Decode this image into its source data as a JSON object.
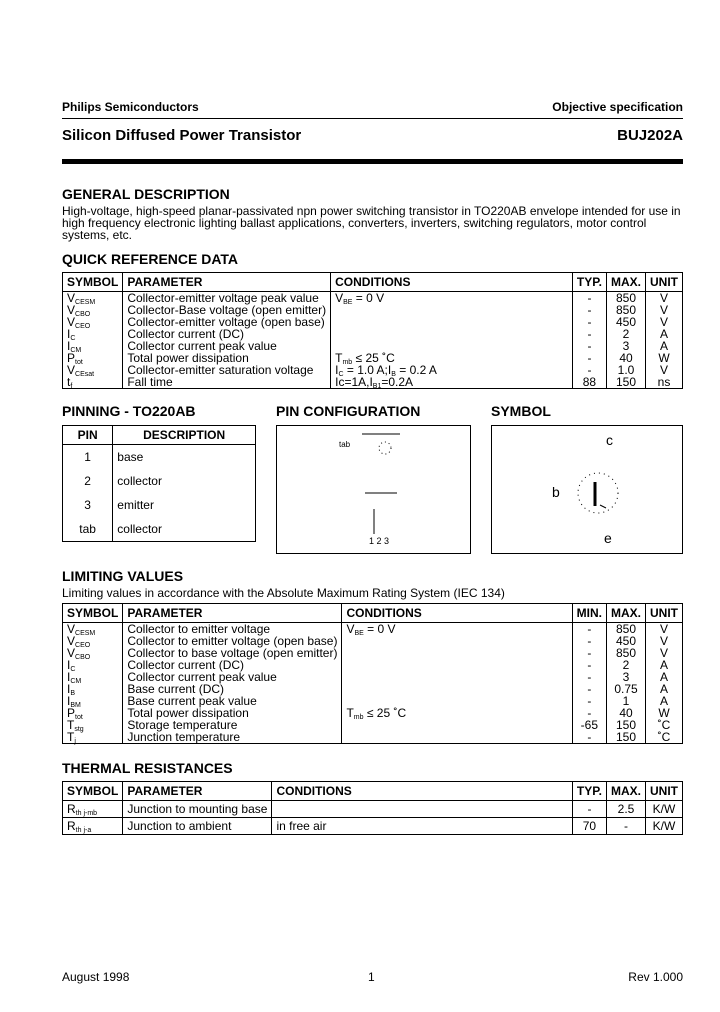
{
  "header": {
    "company": "Philips Semiconductors",
    "doc_type": "Objective specification",
    "title": "Silicon Diffused Power Transistor",
    "part": "BUJ202A"
  },
  "general": {
    "heading": "GENERAL DESCRIPTION",
    "text": "High-voltage, high-speed planar-passivated npn power switching transistor in TO220AB envelope intended for use in high frequency electronic lighting ballast applications, converters, inverters, switching regulators, motor control systems, etc."
  },
  "quick": {
    "heading": "QUICK REFERENCE DATA",
    "columns": [
      "SYMBOL",
      "PARAMETER",
      "CONDITIONS",
      "TYP.",
      "MAX.",
      "UNIT"
    ],
    "rows": [
      {
        "sym": [
          {
            "t": "V"
          },
          {
            "t": "CESM",
            "sub": true
          }
        ],
        "param": "Collector-emitter voltage peak value",
        "cond": [
          {
            "t": "V"
          },
          {
            "t": "BE",
            "sub": true
          },
          {
            "t": " = 0 V"
          }
        ],
        "v1": "-",
        "max": "850",
        "unit": "V"
      },
      {
        "sym": [
          {
            "t": "V"
          },
          {
            "t": "CBO",
            "sub": true
          }
        ],
        "param": "Collector-Base voltage (open emitter)",
        "cond": [],
        "v1": "-",
        "max": "850",
        "unit": "V"
      },
      {
        "sym": [
          {
            "t": "V"
          },
          {
            "t": "CEO",
            "sub": true
          }
        ],
        "param": "Collector-emitter voltage (open base)",
        "cond": [],
        "v1": "-",
        "max": "450",
        "unit": "V"
      },
      {
        "sym": [
          {
            "t": "I"
          },
          {
            "t": "C",
            "sub": true
          }
        ],
        "param": "Collector current (DC)",
        "cond": [],
        "v1": "-",
        "max": "2",
        "unit": "A"
      },
      {
        "sym": [
          {
            "t": "I"
          },
          {
            "t": "CM",
            "sub": true
          }
        ],
        "param": "Collector current peak value",
        "cond": [],
        "v1": "-",
        "max": "3",
        "unit": "A"
      },
      {
        "sym": [
          {
            "t": "P"
          },
          {
            "t": "tot",
            "sub": true
          }
        ],
        "param": "Total power dissipation",
        "cond": [
          {
            "t": "T"
          },
          {
            "t": "mb",
            "sub": true
          },
          {
            "t": " ≤ 25 ˚C"
          }
        ],
        "v1": "-",
        "max": "40",
        "unit": "W"
      },
      {
        "sym": [
          {
            "t": "V"
          },
          {
            "t": "CEsat",
            "sub": true
          }
        ],
        "param": "Collector-emitter saturation voltage",
        "cond": [
          {
            "t": "I"
          },
          {
            "t": "C",
            "sub": true
          },
          {
            "t": " = 1.0 A;I"
          },
          {
            "t": "B",
            "sub": true
          },
          {
            "t": " = 0.2 A"
          }
        ],
        "v1": "-",
        "max": "1.0",
        "unit": "V"
      },
      {
        "sym": [
          {
            "t": "t"
          },
          {
            "t": "f",
            "sub": true
          }
        ],
        "param": "Fall time",
        "cond": [
          {
            "t": "Ic=1A,I"
          },
          {
            "t": "B1",
            "sub": true
          },
          {
            "t": "=0.2A"
          }
        ],
        "v1": "88",
        "max": "150",
        "unit": "ns"
      }
    ]
  },
  "pinning": {
    "heading": "PINNING - TO220AB",
    "columns": [
      "PIN",
      "DESCRIPTION"
    ],
    "rows": [
      {
        "pin": "1",
        "desc": "base"
      },
      {
        "pin": "2",
        "desc": "collector"
      },
      {
        "pin": "3",
        "desc": "emitter"
      },
      {
        "pin": "tab",
        "desc": "collector"
      }
    ]
  },
  "pin_config": {
    "heading": "PIN CONFIGURATION",
    "tab_label": "tab",
    "pins_label": "1 2 3"
  },
  "symbol": {
    "heading": "SYMBOL",
    "c": "c",
    "b": "b",
    "e": "e"
  },
  "limiting": {
    "heading": "LIMITING VALUES",
    "note": "Limiting values in accordance with the Absolute Maximum Rating System (IEC 134)",
    "columns": [
      "SYMBOL",
      "PARAMETER",
      "CONDITIONS",
      "MIN.",
      "MAX.",
      "UNIT"
    ],
    "rows": [
      {
        "sym": [
          {
            "t": "V"
          },
          {
            "t": "CESM",
            "sub": true
          }
        ],
        "param": "Collector to emitter voltage",
        "cond": [
          {
            "t": "V"
          },
          {
            "t": "BE",
            "sub": true
          },
          {
            "t": " = 0 V"
          }
        ],
        "v1": "-",
        "max": "850",
        "unit": "V"
      },
      {
        "sym": [
          {
            "t": "V"
          },
          {
            "t": "CEO",
            "sub": true
          }
        ],
        "param": "Collector to emitter voltage (open base)",
        "cond": [],
        "v1": "-",
        "max": "450",
        "unit": "V"
      },
      {
        "sym": [
          {
            "t": "V"
          },
          {
            "t": "CBO",
            "sub": true
          }
        ],
        "param": "Collector to base voltage (open emitter)",
        "cond": [],
        "v1": "-",
        "max": "850",
        "unit": "V"
      },
      {
        "sym": [
          {
            "t": "I"
          },
          {
            "t": "C",
            "sub": true
          }
        ],
        "param": "Collector current (DC)",
        "cond": [],
        "v1": "-",
        "max": "2",
        "unit": "A"
      },
      {
        "sym": [
          {
            "t": "I"
          },
          {
            "t": "CM",
            "sub": true
          }
        ],
        "param": "Collector current peak value",
        "cond": [],
        "v1": "-",
        "max": "3",
        "unit": "A"
      },
      {
        "sym": [
          {
            "t": "I"
          },
          {
            "t": "B",
            "sub": true
          }
        ],
        "param": "Base current (DC)",
        "cond": [],
        "v1": "-",
        "max": "0.75",
        "unit": "A"
      },
      {
        "sym": [
          {
            "t": "I"
          },
          {
            "t": "BM",
            "sub": true
          }
        ],
        "param": "Base current peak value",
        "cond": [],
        "v1": "-",
        "max": "1",
        "unit": "A"
      },
      {
        "sym": [
          {
            "t": "P"
          },
          {
            "t": "tot",
            "sub": true
          }
        ],
        "param": "Total power dissipation",
        "cond": [
          {
            "t": "T"
          },
          {
            "t": "mb",
            "sub": true
          },
          {
            "t": " ≤ 25 ˚C"
          }
        ],
        "v1": "-",
        "max": "40",
        "unit": "W"
      },
      {
        "sym": [
          {
            "t": "T"
          },
          {
            "t": "stg",
            "sub": true
          }
        ],
        "param": "Storage temperature",
        "cond": [],
        "v1": "-65",
        "max": "150",
        "unit": "˚C"
      },
      {
        "sym": [
          {
            "t": "T"
          },
          {
            "t": "j",
            "sub": true
          }
        ],
        "param": "Junction temperature",
        "cond": [],
        "v1": "-",
        "max": "150",
        "unit": "˚C"
      }
    ]
  },
  "thermal": {
    "heading": "THERMAL RESISTANCES",
    "columns": [
      "SYMBOL",
      "PARAMETER",
      "CONDITIONS",
      "TYP.",
      "MAX.",
      "UNIT"
    ],
    "rows": [
      {
        "sym": [
          {
            "t": "R"
          },
          {
            "t": "th j-mb",
            "sub": true
          }
        ],
        "param": "Junction to mounting base",
        "cond": [],
        "v1": "-",
        "max": "2.5",
        "unit": "K/W"
      },
      {
        "sym": [
          {
            "t": "R"
          },
          {
            "t": "th j-a",
            "sub": true
          }
        ],
        "param": "Junction to ambient",
        "cond": [
          {
            "t": "in free air"
          }
        ],
        "v1": "70",
        "max": "-",
        "unit": "K/W"
      }
    ]
  },
  "footer": {
    "date": "August 1998",
    "page": "1",
    "rev": "Rev 1.000"
  }
}
